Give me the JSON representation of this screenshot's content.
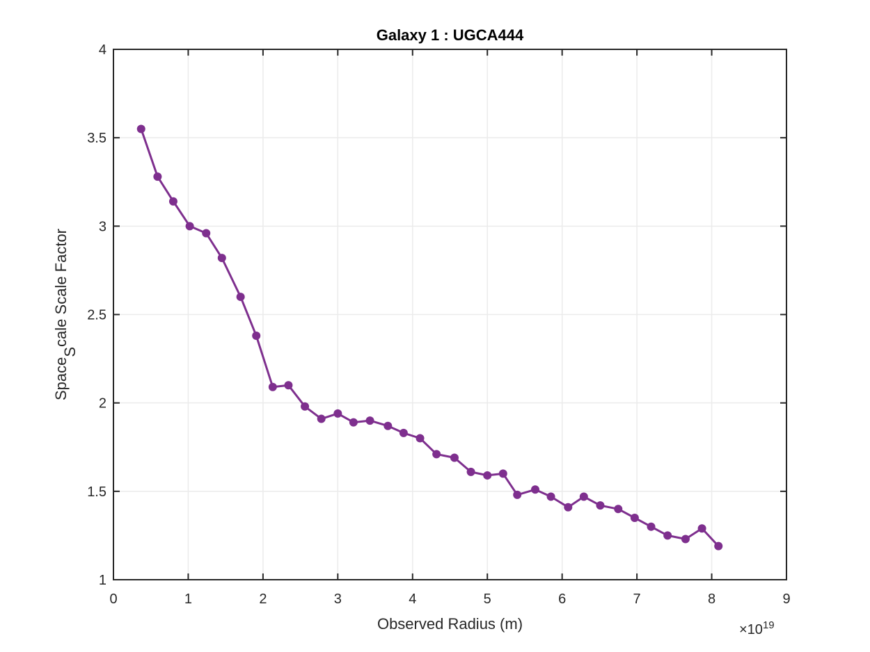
{
  "chart_data": {
    "type": "line",
    "title": "Galaxy 1 : UGCA444",
    "xlabel": "Observed Radius (m)",
    "ylabel_parts": {
      "pre": "Space",
      "sub": "S",
      "post": "cale Scale Factor"
    },
    "x_exponent_prefix": "×10",
    "x_exponent_power": "19",
    "xlim": [
      0,
      9
    ],
    "ylim": [
      1,
      4
    ],
    "xticks": [
      0,
      1,
      2,
      3,
      4,
      5,
      6,
      7,
      8,
      9
    ],
    "yticks": [
      1,
      1.5,
      2,
      2.5,
      3,
      3.5,
      4
    ],
    "xtick_labels": [
      "0",
      "1",
      "2",
      "3",
      "4",
      "5",
      "6",
      "7",
      "8",
      "9"
    ],
    "ytick_labels": [
      "1",
      "1.5",
      "2",
      "2.5",
      "3",
      "3.5",
      "4"
    ],
    "grid": true,
    "series": [
      {
        "color": "#7e2f8e",
        "marker": "circle",
        "x": [
          0.37,
          0.59,
          0.8,
          1.02,
          1.24,
          1.45,
          1.7,
          1.91,
          2.13,
          2.34,
          2.56,
          2.78,
          3.0,
          3.21,
          3.43,
          3.67,
          3.88,
          4.1,
          4.32,
          4.56,
          4.78,
          5.0,
          5.21,
          5.4,
          5.64,
          5.85,
          6.08,
          6.29,
          6.51,
          6.75,
          6.97,
          7.19,
          7.41,
          7.65,
          7.87,
          8.09
        ],
        "y": [
          3.55,
          3.28,
          3.14,
          3.0,
          2.96,
          2.82,
          2.6,
          2.38,
          2.09,
          2.1,
          1.98,
          1.91,
          1.94,
          1.89,
          1.9,
          1.87,
          1.83,
          1.8,
          1.71,
          1.69,
          1.61,
          1.59,
          1.6,
          1.48,
          1.51,
          1.47,
          1.41,
          1.47,
          1.42,
          1.4,
          1.35,
          1.3,
          1.25,
          1.23,
          1.29,
          1.19
        ]
      }
    ]
  }
}
